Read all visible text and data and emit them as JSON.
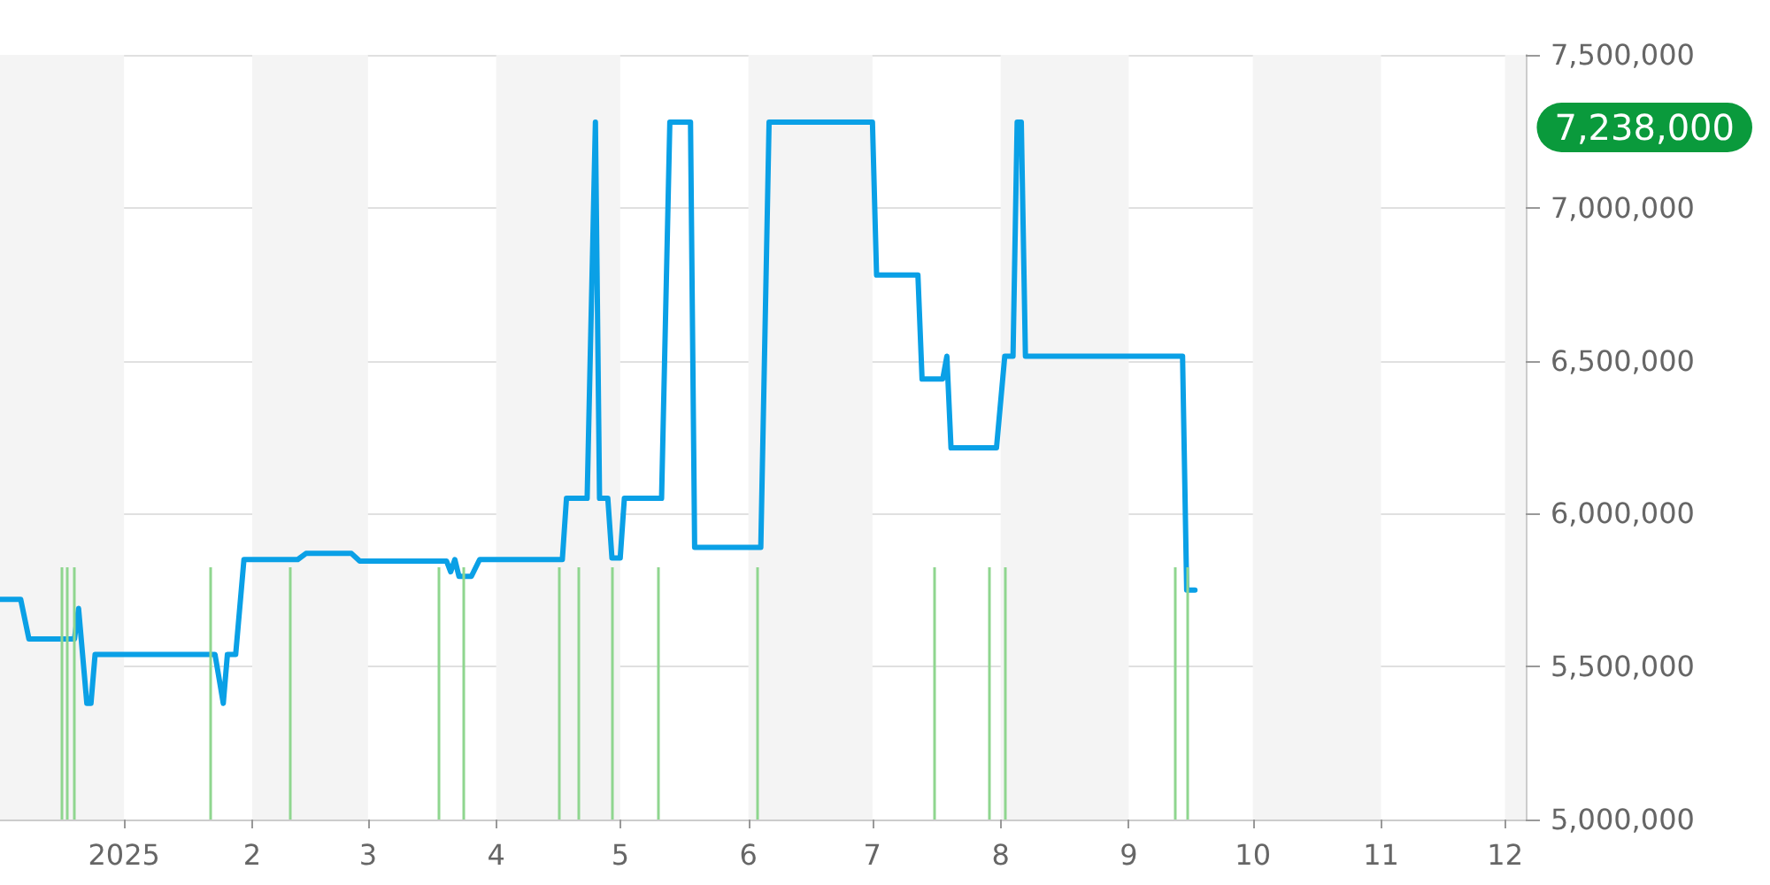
{
  "chart_data": {
    "type": "line",
    "xlim": [
      "2024-12-02",
      "2025-12-06"
    ],
    "xticks": [
      {
        "value": "2025-01-01",
        "label": "2025"
      },
      {
        "value": "2025-02-01",
        "label": "2"
      },
      {
        "value": "2025-03-01",
        "label": "3"
      },
      {
        "value": "2025-04-01",
        "label": "4"
      },
      {
        "value": "2025-05-01",
        "label": "5"
      },
      {
        "value": "2025-06-01",
        "label": "6"
      },
      {
        "value": "2025-07-01",
        "label": "7"
      },
      {
        "value": "2025-08-01",
        "label": "8"
      },
      {
        "value": "2025-09-01",
        "label": "9"
      },
      {
        "value": "2025-10-01",
        "label": "10"
      },
      {
        "value": "2025-11-01",
        "label": "11"
      },
      {
        "value": "2025-12-01",
        "label": "12"
      }
    ],
    "ylim": [
      5000000,
      7500000
    ],
    "yticks": [
      {
        "value": 5000000,
        "label": "5,000,000"
      },
      {
        "value": 5500000,
        "label": "5,500,000"
      },
      {
        "value": 6000000,
        "label": "6,000,000"
      },
      {
        "value": 6500000,
        "label": "6,500,000"
      },
      {
        "value": 7000000,
        "label": "7,000,000"
      },
      {
        "value": 7500000,
        "label": "7,500,000"
      }
    ],
    "grid": "y",
    "marker": "none",
    "line_style": "solid",
    "ref_lines": [
      {
        "axis": "x",
        "value": "2024-12-17",
        "color": "#8fd68f"
      },
      {
        "axis": "x",
        "value": "2024-12-18",
        "color": "#8fd68f"
      },
      {
        "axis": "x",
        "value": "2024-12-20",
        "color": "#8fd68f"
      },
      {
        "axis": "x",
        "value": "2025-01-22",
        "color": "#8fd68f"
      },
      {
        "axis": "x",
        "value": "2025-02-10",
        "color": "#8fd68f"
      },
      {
        "axis": "x",
        "value": "2025-03-18",
        "color": "#8fd68f"
      },
      {
        "axis": "x",
        "value": "2025-03-24",
        "color": "#8fd68f"
      },
      {
        "axis": "x",
        "value": "2025-04-16",
        "color": "#8fd68f"
      },
      {
        "axis": "x",
        "value": "2025-04-21",
        "color": "#8fd68f"
      },
      {
        "axis": "x",
        "value": "2025-04-29",
        "color": "#8fd68f"
      },
      {
        "axis": "x",
        "value": "2025-05-10",
        "color": "#8fd68f"
      },
      {
        "axis": "x",
        "value": "2025-06-03",
        "color": "#8fd68f"
      },
      {
        "axis": "x",
        "value": "2025-07-16",
        "color": "#8fd68f"
      },
      {
        "axis": "x",
        "value": "2025-07-29",
        "color": "#8fd68f"
      },
      {
        "axis": "x",
        "value": "2025-08-02",
        "color": "#8fd68f"
      },
      {
        "axis": "x",
        "value": "2025-09-12",
        "color": "#8fd68f"
      },
      {
        "axis": "x",
        "value": "2025-09-15",
        "color": "#8fd68f"
      }
    ],
    "bands": [
      {
        "axis": "x",
        "from": "2024-12-02",
        "to": "2025-01-01",
        "color": "#f4f4f4"
      },
      {
        "axis": "x",
        "from": "2025-02-01",
        "to": "2025-03-01",
        "color": "#f4f4f4"
      },
      {
        "axis": "x",
        "from": "2025-04-01",
        "to": "2025-05-01",
        "color": "#f4f4f4"
      },
      {
        "axis": "x",
        "from": "2025-06-01",
        "to": "2025-07-01",
        "color": "#f4f4f4"
      },
      {
        "axis": "x",
        "from": "2025-08-01",
        "to": "2025-09-01",
        "color": "#f4f4f4"
      },
      {
        "axis": "x",
        "from": "2025-10-01",
        "to": "2025-11-01",
        "color": "#f4f4f4"
      },
      {
        "axis": "x",
        "from": "2025-12-01",
        "to": "2025-12-06",
        "color": "#f4f4f4"
      }
    ],
    "annotations": [
      "7,238,000"
    ],
    "series": [
      {
        "color": "#0aa0e6",
        "x": [
          "2024-12-02",
          "2024-12-07",
          "2024-12-09",
          "2024-12-20",
          "2024-12-21",
          "2024-12-23",
          "2024-12-24",
          "2024-12-25",
          "2025-01-23",
          "2025-01-25",
          "2025-01-26",
          "2025-01-28",
          "2025-01-30",
          "2025-02-12",
          "2025-02-14",
          "2025-02-25",
          "2025-02-27",
          "2025-03-20",
          "2025-03-21",
          "2025-03-22",
          "2025-03-23",
          "2025-03-26",
          "2025-03-28",
          "2025-04-17",
          "2025-04-18",
          "2025-04-23",
          "2025-04-25",
          "2025-04-26",
          "2025-04-28",
          "2025-04-29",
          "2025-05-01",
          "2025-05-02",
          "2025-05-11",
          "2025-05-13",
          "2025-05-18",
          "2025-05-19",
          "2025-06-04",
          "2025-06-06",
          "2025-07-01",
          "2025-07-02",
          "2025-07-12",
          "2025-07-13",
          "2025-07-18",
          "2025-07-19",
          "2025-07-20",
          "2025-07-31",
          "2025-08-02",
          "2025-08-04",
          "2025-08-05",
          "2025-08-06",
          "2025-08-07",
          "2025-09-14",
          "2025-09-15",
          "2025-09-17"
        ],
        "values": [
          5720000,
          5720000,
          5590000,
          5590000,
          5690000,
          5380000,
          5380000,
          5540000,
          5540000,
          5380000,
          5540000,
          5540000,
          5850000,
          5850000,
          5870000,
          5870000,
          5845000,
          5845000,
          5810000,
          5850000,
          5795000,
          5795000,
          5850000,
          5850000,
          6050000,
          6050000,
          7280000,
          6050000,
          6050000,
          5855000,
          5855000,
          6050000,
          6050000,
          7280000,
          7280000,
          5890000,
          5890000,
          7280000,
          7280000,
          6780000,
          6780000,
          6440000,
          6440000,
          6515000,
          6215000,
          6215000,
          6515000,
          6515000,
          7280000,
          7280000,
          6515000,
          6515000,
          5750000,
          5750000
        ]
      }
    ]
  }
}
